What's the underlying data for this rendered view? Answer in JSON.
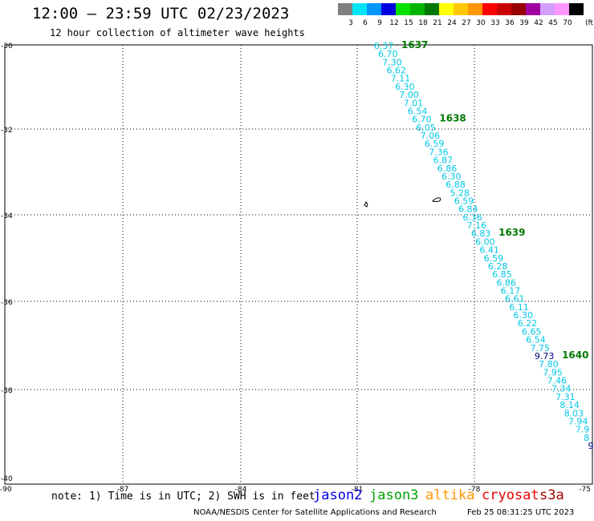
{
  "header": {
    "title": "12:00 — 23:59 UTC 02/23/2023",
    "subtitle": "12 hour collection of altimeter wave heights"
  },
  "legend": {
    "unit": "(ft)",
    "items": [
      {
        "color": "#808080",
        "label": "3"
      },
      {
        "color": "#00e5f5",
        "label": "6"
      },
      {
        "color": "#0096ff",
        "label": "9"
      },
      {
        "color": "#0000e0",
        "label": "12"
      },
      {
        "color": "#00e100",
        "label": "15"
      },
      {
        "color": "#00b400",
        "label": "18"
      },
      {
        "color": "#007800",
        "label": "21"
      },
      {
        "color": "#ffff00",
        "label": "24"
      },
      {
        "color": "#ffc800",
        "label": "27"
      },
      {
        "color": "#ff9600",
        "label": "30"
      },
      {
        "color": "#ff0000",
        "label": "33"
      },
      {
        "color": "#c80000",
        "label": "36"
      },
      {
        "color": "#960000",
        "label": "39"
      },
      {
        "color": "#a000a0",
        "label": "42"
      },
      {
        "color": "#d2a0ff",
        "label": "45"
      },
      {
        "color": "#ff96ff",
        "label": "70"
      },
      {
        "color": "#000000",
        "label": ""
      }
    ]
  },
  "map": {
    "lat_ticks": [
      "-30",
      "-32",
      "-34",
      "-36",
      "-38",
      "-40"
    ],
    "lon_ticks": [
      "-90",
      "-87",
      "-84",
      "-81",
      "-78",
      "-75"
    ],
    "track_color": "#00c8e6",
    "time_color": "#007800",
    "swh": [
      "6.37",
      "6.70",
      "7.30",
      "6.62",
      "7.11",
      "6.30",
      "7.00",
      "7.01",
      "6.54",
      "6.70",
      "6.05",
      "7.06",
      "6.59",
      "7.36",
      "6.87",
      "6.86",
      "6.30",
      "6.88",
      "5.28",
      "6.59",
      "6.84",
      "6.36",
      "7.16",
      "6.83",
      "6.00",
      "6.41",
      "6.59",
      "6.28",
      "6.85",
      "6.86",
      "6.17",
      "6.61",
      "6.11",
      "6.30",
      "6.22",
      "6.65",
      "6.54",
      "7.75",
      "9.73",
      "7.80",
      "7.95",
      "7.46",
      "7.34",
      "7.31",
      "8.14",
      "8.03",
      "7.94",
      "7.9",
      "8",
      "9"
    ],
    "times": [
      {
        "label": "1637",
        "after_index": 0
      },
      {
        "label": "1638",
        "after_index": 9
      },
      {
        "label": "1639",
        "after_index": 23
      },
      {
        "label": "1640",
        "after_index": 38
      }
    ]
  },
  "footer": {
    "note": "note:  1) Time is in UTC; 2) SWH is in feet",
    "satellites": [
      {
        "name": "jason2",
        "color": "#0000e6"
      },
      {
        "name": "jason3",
        "color": "#00a000"
      },
      {
        "name": "altika",
        "color": "#ff9600"
      },
      {
        "name": "cryosat",
        "color": "#e60000"
      },
      {
        "name": "s3a",
        "color": "#a00000"
      }
    ],
    "credit": "NOAA/NESDIS Center for Satellite Applications and Research",
    "timestamp": "Feb 25 08:31:25 UTC 2023"
  }
}
